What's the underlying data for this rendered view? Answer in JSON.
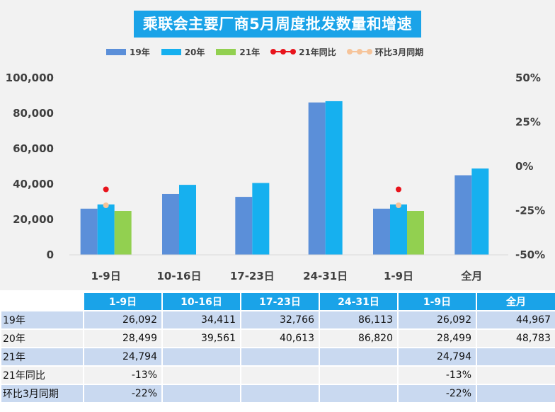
{
  "chart_data": {
    "type": "bar",
    "title": "乘联会主要厂商5月周度批发数量和增速",
    "categories": [
      "1-9日",
      "10-16日",
      "17-23日",
      "24-31日",
      "1-9日",
      "全月"
    ],
    "series": [
      {
        "name": "19年",
        "type": "bar",
        "axis": "left",
        "color": "#5b8fd9",
        "values": [
          26092,
          34411,
          32766,
          86113,
          26092,
          44967
        ]
      },
      {
        "name": "20年",
        "type": "bar",
        "axis": "left",
        "color": "#16b0ef",
        "values": [
          28499,
          39561,
          40613,
          86820,
          28499,
          48783
        ]
      },
      {
        "name": "21年",
        "type": "bar",
        "axis": "left",
        "color": "#92d050",
        "values": [
          24794,
          null,
          null,
          null,
          24794,
          null
        ]
      },
      {
        "name": "21年同比",
        "type": "line",
        "axis": "right",
        "color": "#e8141c",
        "values": [
          -0.13,
          null,
          null,
          null,
          -0.13,
          null
        ]
      },
      {
        "name": "环比3月同期",
        "type": "line",
        "axis": "right",
        "color": "#f6c49a",
        "values": [
          -0.22,
          null,
          null,
          null,
          -0.22,
          null
        ]
      }
    ],
    "ylim": [
      0,
      100000
    ],
    "yticks": [
      "0",
      "20,000",
      "40,000",
      "60,000",
      "80,000",
      "100,000"
    ],
    "y2lim": [
      -0.5,
      0.5
    ],
    "y2ticks": [
      "-50%",
      "-25%",
      "0%",
      "25%",
      "50%"
    ],
    "legend_position": "top",
    "grid": false
  },
  "table": {
    "headers": [
      "1-9日",
      "10-16日",
      "17-23日",
      "24-31日",
      "1-9日",
      "全月"
    ],
    "rows": [
      {
        "label": "19年",
        "cells": [
          "26,092",
          "34,411",
          "32,766",
          "86,113",
          "26,092",
          "44,967"
        ]
      },
      {
        "label": "20年",
        "cells": [
          "28,499",
          "39,561",
          "40,613",
          "86,820",
          "28,499",
          "48,783"
        ]
      },
      {
        "label": "21年",
        "cells": [
          "24,794",
          "",
          "",
          "",
          "24,794",
          ""
        ]
      },
      {
        "label": "21年同比",
        "cells": [
          "-13%",
          "",
          "",
          "",
          "-13%",
          ""
        ]
      },
      {
        "label": "环比3月同期",
        "cells": [
          "-22%",
          "",
          "",
          "",
          "-22%",
          ""
        ]
      }
    ]
  }
}
